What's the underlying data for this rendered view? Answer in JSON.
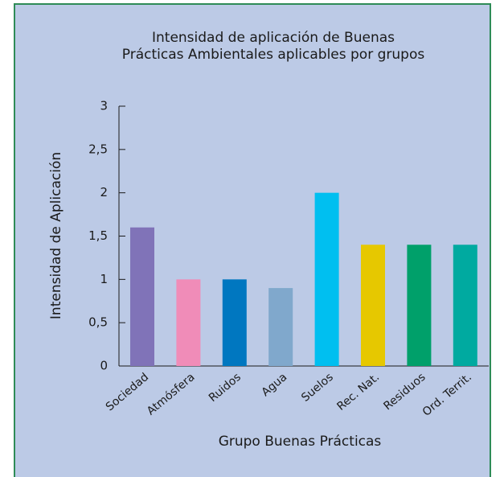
{
  "chart_data": {
    "type": "bar",
    "title": [
      "Intensidad de aplicación de Buenas",
      "Prácticas Ambientales aplicables por grupos"
    ],
    "y_label": "Intensidad de Aplicación",
    "x_label": "Grupo Buenas Prácticas",
    "categories": [
      "Sociedad",
      "Atmósfera",
      "Ruidos",
      "Agua",
      "Suelos",
      "Rec. Nat.",
      "Residuos",
      "Ord. Territ."
    ],
    "values": [
      1.6,
      1,
      1,
      0.9,
      2,
      1.4,
      1.4,
      1.4
    ],
    "colors": [
      "#8073b8",
      "#f08cb8",
      "#0077c0",
      "#80a8cc",
      "#00bff0",
      "#e6c800",
      "#00a06a",
      "#00aaa0"
    ],
    "ylim": [
      0,
      3
    ],
    "yticks": [
      0,
      {
        "value": 0.5,
        "label": "0,5"
      },
      1,
      {
        "value": 1.5,
        "label": "1,5"
      },
      2,
      {
        "value": 2.5,
        "label": "2,5"
      },
      3
    ]
  }
}
